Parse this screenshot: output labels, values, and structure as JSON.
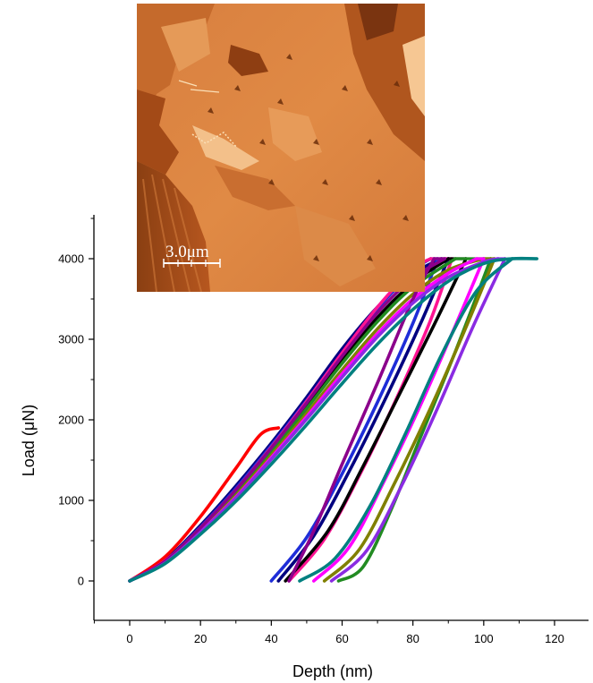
{
  "chart_data": {
    "type": "line",
    "title": "",
    "xlabel": "Depth (nm)",
    "ylabel": "Load (μN)",
    "xlim": [
      -11,
      130
    ],
    "ylim": [
      -500,
      4500
    ],
    "x_ticks": [
      0,
      20,
      40,
      60,
      80,
      100,
      120
    ],
    "y_ticks": [
      0,
      1000,
      2000,
      3000,
      4000
    ],
    "grid": false,
    "legend": "none",
    "max_load": 4000,
    "inset": {
      "kind": "AFM height image of indented surface",
      "scale_bar_label": "3.0μm",
      "colormap": [
        "#6b2e0b",
        "#c05f24",
        "#e89a55",
        "#fbe0b8"
      ]
    },
    "series": [
      {
        "color": "#000080",
        "loading": [
          [
            0,
            0
          ],
          [
            10,
            260
          ],
          [
            20,
            690
          ],
          [
            30,
            1180
          ],
          [
            40,
            1710
          ],
          [
            50,
            2280
          ],
          [
            60,
            2880
          ],
          [
            70,
            3400
          ],
          [
            80,
            3810
          ],
          [
            88,
            4000
          ]
        ],
        "unloading": [
          [
            42,
            0
          ],
          [
            52,
            560
          ],
          [
            62,
            1360
          ],
          [
            72,
            2240
          ],
          [
            82,
            3180
          ],
          [
            90,
            4000
          ]
        ]
      },
      {
        "color": "#ff0000",
        "loading": [
          [
            0,
            0
          ],
          [
            10,
            300
          ],
          [
            20,
            800
          ],
          [
            30,
            1400
          ],
          [
            37,
            1820
          ],
          [
            42,
            1900
          ]
        ],
        "unloading": []
      },
      {
        "color": "#1e2dd8",
        "loading": [
          [
            0,
            0
          ],
          [
            10,
            250
          ],
          [
            20,
            670
          ],
          [
            30,
            1150
          ],
          [
            40,
            1680
          ],
          [
            50,
            2240
          ],
          [
            60,
            2830
          ],
          [
            70,
            3380
          ],
          [
            80,
            3850
          ],
          [
            85,
            4000
          ]
        ],
        "unloading": [
          [
            40,
            0
          ],
          [
            50,
            540
          ],
          [
            60,
            1330
          ],
          [
            70,
            2220
          ],
          [
            80,
            3200
          ],
          [
            87,
            4000
          ]
        ]
      },
      {
        "color": "#ff1493",
        "loading": [
          [
            0,
            0
          ],
          [
            10,
            250
          ],
          [
            20,
            660
          ],
          [
            30,
            1130
          ],
          [
            40,
            1660
          ],
          [
            50,
            2230
          ],
          [
            60,
            2830
          ],
          [
            70,
            3400
          ],
          [
            80,
            3870
          ],
          [
            85,
            4000
          ]
        ],
        "unloading": [
          [
            45,
            0
          ],
          [
            55,
            520
          ],
          [
            65,
            1320
          ],
          [
            75,
            2230
          ],
          [
            85,
            3240
          ],
          [
            91,
            4000
          ]
        ]
      },
      {
        "color": "#000000",
        "loading": [
          [
            0,
            0
          ],
          [
            10,
            240
          ],
          [
            20,
            650
          ],
          [
            30,
            1110
          ],
          [
            40,
            1620
          ],
          [
            50,
            2170
          ],
          [
            60,
            2740
          ],
          [
            70,
            3270
          ],
          [
            80,
            3700
          ],
          [
            90,
            4000
          ]
        ],
        "unloading": [
          [
            44,
            0
          ],
          [
            56,
            620
          ],
          [
            66,
            1430
          ],
          [
            76,
            2300
          ],
          [
            86,
            3180
          ],
          [
            95,
            4000
          ]
        ]
      },
      {
        "color": "#228b22",
        "loading": [
          [
            0,
            0
          ],
          [
            10,
            235
          ],
          [
            20,
            635
          ],
          [
            30,
            1090
          ],
          [
            40,
            1600
          ],
          [
            50,
            2140
          ],
          [
            60,
            2700
          ],
          [
            70,
            3220
          ],
          [
            80,
            3650
          ],
          [
            92,
            4000
          ]
        ],
        "unloading": [
          [
            59,
            0
          ],
          [
            66,
            180
          ],
          [
            74,
            900
          ],
          [
            82,
            1770
          ],
          [
            92,
            2850
          ],
          [
            102,
            4000
          ]
        ]
      },
      {
        "color": "#808000",
        "loading": [
          [
            0,
            0
          ],
          [
            10,
            230
          ],
          [
            20,
            620
          ],
          [
            30,
            1060
          ],
          [
            40,
            1560
          ],
          [
            50,
            2080
          ],
          [
            60,
            2620
          ],
          [
            70,
            3130
          ],
          [
            80,
            3560
          ],
          [
            90,
            3860
          ],
          [
            100,
            4000
          ]
        ],
        "unloading": [
          [
            55,
            0
          ],
          [
            65,
            400
          ],
          [
            75,
            1230
          ],
          [
            85,
            2150
          ],
          [
            95,
            3150
          ],
          [
            103,
            4000
          ]
        ]
      },
      {
        "color": "#ff00ff",
        "loading": [
          [
            0,
            0
          ],
          [
            10,
            230
          ],
          [
            20,
            610
          ],
          [
            30,
            1040
          ],
          [
            40,
            1530
          ],
          [
            50,
            2040
          ],
          [
            60,
            2570
          ],
          [
            70,
            3070
          ],
          [
            80,
            3500
          ],
          [
            90,
            3820
          ],
          [
            98,
            4000
          ]
        ],
        "unloading": [
          [
            52,
            0
          ],
          [
            62,
            420
          ],
          [
            72,
            1250
          ],
          [
            82,
            2170
          ],
          [
            92,
            3170
          ],
          [
            100,
            4000
          ]
        ]
      },
      {
        "color": "#8b008b",
        "loading": [
          [
            0,
            0
          ],
          [
            10,
            245
          ],
          [
            20,
            660
          ],
          [
            30,
            1130
          ],
          [
            40,
            1650
          ],
          [
            50,
            2210
          ],
          [
            60,
            2790
          ],
          [
            70,
            3330
          ],
          [
            80,
            3760
          ],
          [
            89,
            4000
          ]
        ],
        "unloading": [
          [
            45,
            0
          ],
          [
            52,
            620
          ],
          [
            60,
            1450
          ],
          [
            70,
            2460
          ],
          [
            80,
            3500
          ],
          [
            86,
            4000
          ]
        ]
      },
      {
        "color": "#8a2be2",
        "loading": [
          [
            0,
            0
          ],
          [
            10,
            225
          ],
          [
            20,
            605
          ],
          [
            30,
            1030
          ],
          [
            40,
            1510
          ],
          [
            50,
            2010
          ],
          [
            60,
            2530
          ],
          [
            70,
            3030
          ],
          [
            80,
            3450
          ],
          [
            90,
            3770
          ],
          [
            100,
            3960
          ],
          [
            104,
            4000
          ]
        ],
        "unloading": [
          [
            57,
            0
          ],
          [
            67,
            380
          ],
          [
            77,
            1200
          ],
          [
            87,
            2150
          ],
          [
            97,
            3160
          ],
          [
            106,
            4000
          ]
        ]
      },
      {
        "color": "#008080",
        "loading": [
          [
            0,
            0
          ],
          [
            10,
            215
          ],
          [
            20,
            580
          ],
          [
            30,
            990
          ],
          [
            40,
            1450
          ],
          [
            50,
            1940
          ],
          [
            60,
            2450
          ],
          [
            70,
            2940
          ],
          [
            80,
            3370
          ],
          [
            90,
            3720
          ],
          [
            100,
            3940
          ],
          [
            108,
            4000
          ],
          [
            115,
            4000
          ]
        ],
        "unloading": [
          [
            48,
            0
          ],
          [
            58,
            280
          ],
          [
            68,
            940
          ],
          [
            78,
            1840
          ],
          [
            88,
            2800
          ],
          [
            98,
            3600
          ],
          [
            108,
            4000
          ]
        ]
      }
    ]
  }
}
